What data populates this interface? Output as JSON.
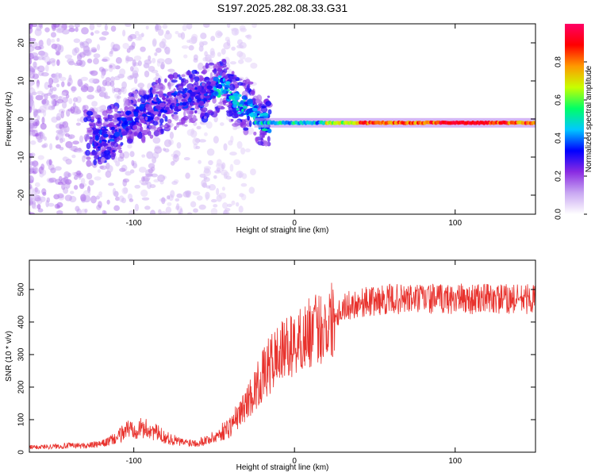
{
  "title": "S197.2025.282.08.33.G31",
  "chart_data": [
    {
      "type": "heatmap",
      "name": "spectrogram",
      "xlabel": "Height of straight line (km)",
      "ylabel": "Frequency (Hz)",
      "xlim": [
        -165,
        150
      ],
      "ylim": [
        -25,
        25
      ],
      "xticks": [
        -100,
        0,
        100
      ],
      "yticks": [
        -20,
        -10,
        0,
        10,
        20
      ],
      "colorbar": {
        "label": "Normalized spectral amplitude",
        "range": [
          0,
          1
        ],
        "ticks": [
          0.0,
          0.2,
          0.4,
          0.6,
          0.8
        ],
        "colors": [
          "#ffffff",
          "#c9a8f2",
          "#8a2be2",
          "#0000ff",
          "#00c8ff",
          "#00ff66",
          "#c8ff00",
          "#ff9900",
          "#ff0000",
          "#ff0066"
        ]
      },
      "ridge": [
        {
          "x": -120,
          "y": -5
        },
        {
          "x": -100,
          "y": 0
        },
        {
          "x": -80,
          "y": 4
        },
        {
          "x": -60,
          "y": 6
        },
        {
          "x": -45,
          "y": 9
        },
        {
          "x": -35,
          "y": 4
        },
        {
          "x": -25,
          "y": 2
        },
        {
          "x": -20,
          "y": -1
        },
        {
          "x": 0,
          "y": -1
        },
        {
          "x": 50,
          "y": -1
        },
        {
          "x": 100,
          "y": 0
        },
        {
          "x": 150,
          "y": -1
        }
      ]
    },
    {
      "type": "line",
      "name": "snr",
      "xlabel": "Height of straight line (km)",
      "ylabel": "SNR (10 * v/v)",
      "xlim": [
        -165,
        150
      ],
      "ylim": [
        0,
        590
      ],
      "xticks": [
        -100,
        0,
        100
      ],
      "yticks": [
        0,
        100,
        200,
        300,
        400,
        500
      ],
      "color": "#e8322d",
      "x": [
        -165,
        -150,
        -140,
        -130,
        -120,
        -110,
        -105,
        -100,
        -90,
        -80,
        -70,
        -60,
        -50,
        -40,
        -35,
        -30,
        -25,
        -20,
        -15,
        -10,
        -5,
        0,
        5,
        10,
        15,
        20,
        25,
        30,
        40,
        50,
        60,
        70,
        80,
        90,
        100,
        110,
        120,
        130,
        140,
        150
      ],
      "values": [
        15,
        18,
        20,
        20,
        25,
        45,
        70,
        75,
        70,
        45,
        30,
        30,
        45,
        80,
        110,
        150,
        190,
        230,
        270,
        300,
        320,
        330,
        350,
        370,
        380,
        395,
        420,
        445,
        460,
        465,
        470,
        470,
        472,
        470,
        472,
        470,
        472,
        470,
        470,
        472
      ]
    }
  ]
}
